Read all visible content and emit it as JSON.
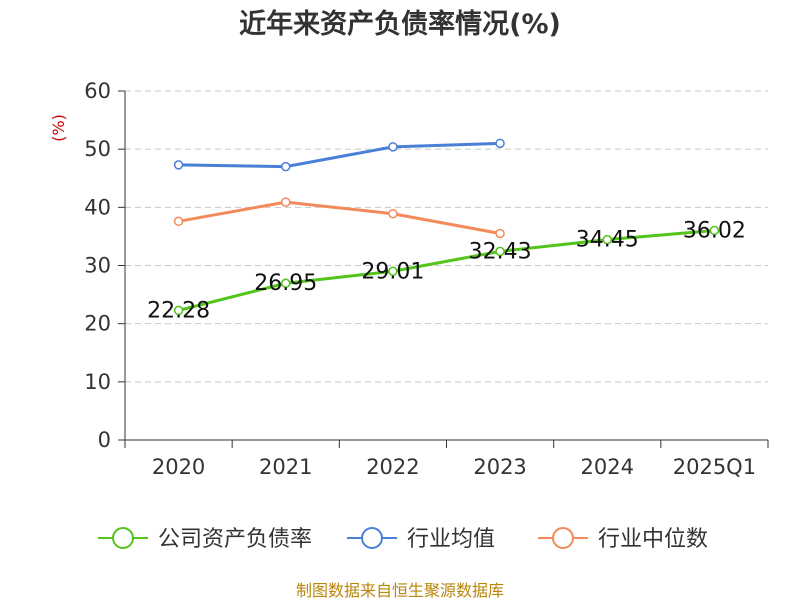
{
  "chart_data": {
    "type": "line",
    "title": "近年来资产负债率情况(%)",
    "ylabel": "(%)",
    "categories": [
      "2020",
      "2021",
      "2022",
      "2023",
      "2024",
      "2025Q1"
    ],
    "ylim": [
      0,
      60
    ],
    "yticks": [
      "0",
      "10",
      "20",
      "30",
      "40",
      "50",
      "60"
    ],
    "grid": true,
    "legend_position": "bottom",
    "series": [
      {
        "name": "公司资产负债率",
        "color": "#52c41a",
        "values": [
          22.28,
          26.95,
          29.01,
          32.43,
          34.45,
          36.02
        ],
        "labels": [
          "22.28",
          "26.95",
          "29.01",
          "32.43",
          "34.45",
          "36.02"
        ]
      },
      {
        "name": "行业均值",
        "color": "#4a7fd8",
        "values": [
          47.3,
          47.0,
          50.4,
          51.0,
          null,
          null
        ]
      },
      {
        "name": "行业中位数",
        "color": "#f4895a",
        "values": [
          37.6,
          40.9,
          38.9,
          35.5,
          null,
          null
        ]
      }
    ],
    "source": "制图数据来自恒生聚源数据库"
  }
}
